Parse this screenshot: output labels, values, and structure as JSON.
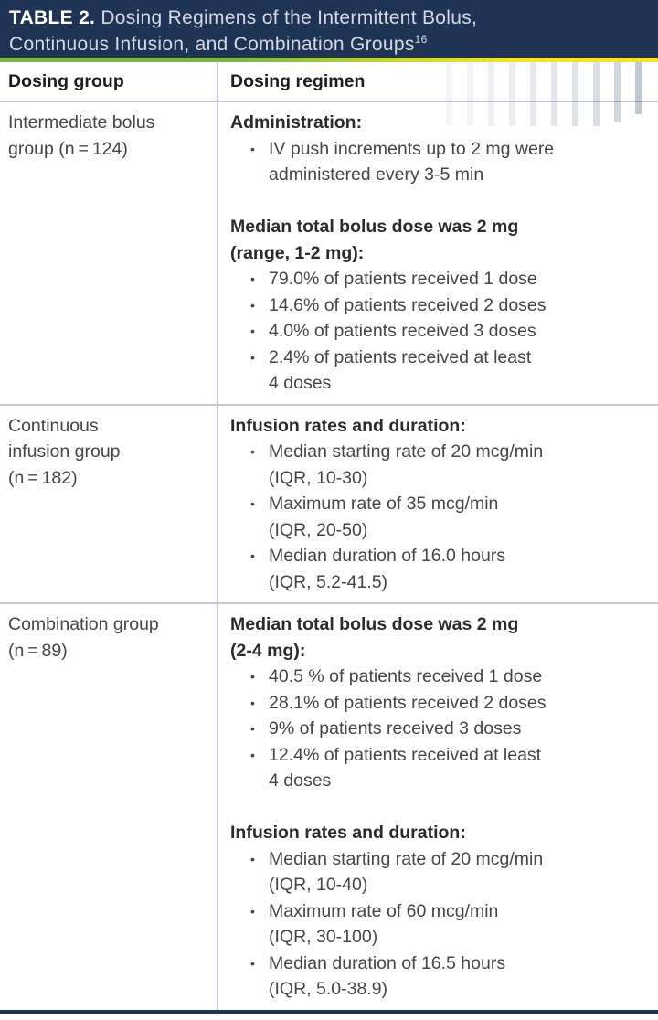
{
  "table": {
    "header": {
      "label": "TABLE 2.",
      "line1": "Dosing Regimens of the Intermittent Bolus,",
      "line2": "Continuous Infusion, and Combination Groups",
      "superscript": "16"
    },
    "columns": [
      "Dosing group",
      "Dosing regimen"
    ],
    "bullet_char": "•",
    "rows": [
      {
        "group_lines": [
          "Intermediate bolus",
          "group (n = 124)"
        ],
        "blocks": [
          {
            "heading_lines": [
              "Administration:"
            ],
            "bullets": [
              {
                "lines": [
                  "IV push increments up to 2 mg were",
                  "administered every 3-5 min"
                ]
              }
            ]
          },
          {
            "heading_lines": [
              "Median total bolus dose was 2 mg",
              "(range, 1-2 mg):"
            ],
            "bullets": [
              {
                "lines": [
                  "79.0% of patients received 1 dose"
                ]
              },
              {
                "lines": [
                  "14.6% of patients received 2 doses"
                ]
              },
              {
                "lines": [
                  "4.0% of patients received 3 doses"
                ]
              },
              {
                "lines": [
                  "2.4% of patients received at least",
                  "4 doses"
                ]
              }
            ]
          }
        ]
      },
      {
        "group_lines": [
          "Continuous",
          "infusion group",
          "(n = 182)"
        ],
        "blocks": [
          {
            "heading_lines": [
              "Infusion rates and duration:"
            ],
            "bullets": [
              {
                "lines": [
                  "Median starting rate of 20 mcg/min",
                  "(IQR, 10-30)"
                ]
              },
              {
                "lines": [
                  "Maximum rate of 35 mcg/min",
                  "(IQR, 20-50)"
                ]
              },
              {
                "lines": [
                  "Median duration of 16.0 hours",
                  "(IQR, 5.2-41.5)"
                ]
              }
            ]
          }
        ]
      },
      {
        "group_lines": [
          "Combination group",
          "(n = 89)"
        ],
        "blocks": [
          {
            "heading_lines": [
              "Median total bolus dose was 2 mg",
              "(2-4 mg):"
            ],
            "bullets": [
              {
                "lines": [
                  "40.5 % of patients received 1 dose"
                ]
              },
              {
                "lines": [
                  "28.1% of patients received 2 doses"
                ]
              },
              {
                "lines": [
                  "9% of patients received 3 doses"
                ]
              },
              {
                "lines": [
                  "12.4% of patients received at least",
                  "4 doses"
                ]
              }
            ]
          },
          {
            "heading_lines": [
              "Infusion rates and duration:"
            ],
            "bullets": [
              {
                "lines": [
                  "Median starting rate of 20 mcg/min",
                  "(IQR, 10-40)"
                ]
              },
              {
                "lines": [
                  "Maximum rate of 60 mcg/min",
                  "(IQR, 30-100)"
                ]
              },
              {
                "lines": [
                  "Median duration of 16.5 hours",
                  "(IQR, 5.0-38.9)"
                ]
              }
            ]
          }
        ]
      }
    ]
  },
  "colors": {
    "header_navy": "#1f3355",
    "accent_green": "#7cb648",
    "accent_yellow": "#f2e42e",
    "divider_gray": "#c9c6d3",
    "heading_text": "#2b2b2e",
    "body_text": "#454549",
    "decor_bar_tint": "#21365c"
  },
  "decor_bars": {
    "heights": [
      70,
      70,
      70,
      70,
      70,
      70,
      70,
      70,
      66,
      57
    ],
    "opacities": [
      0.05,
      0.06,
      0.08,
      0.09,
      0.11,
      0.12,
      0.14,
      0.16,
      0.2,
      0.27
    ]
  }
}
